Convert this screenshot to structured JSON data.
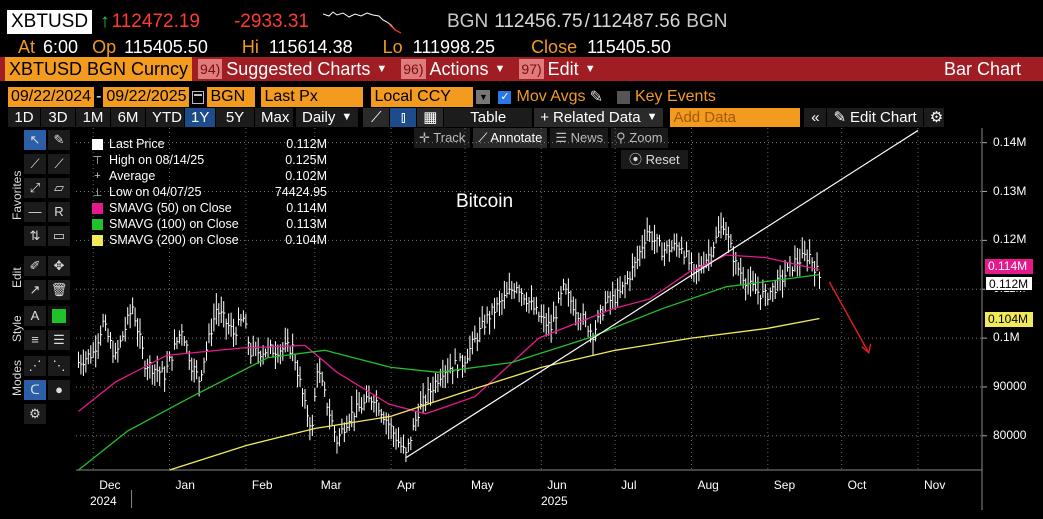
{
  "header": {
    "ticker": "XBTUSD",
    "arrow": "↑",
    "last": "112472.19",
    "change": "-2933.31",
    "source": "BGN",
    "bid": "112456.75",
    "sep": "/",
    "ask": "112487.56",
    "source2": "BGN"
  },
  "quote": {
    "at_label": "At",
    "at": "6:00",
    "op_label": "Op",
    "op": "115405.50",
    "hi_label": "Hi",
    "hi": "115614.38",
    "lo_label": "Lo",
    "lo": "111998.25",
    "close_label": "Close",
    "close": "115405.50"
  },
  "menubar": {
    "security": "XBTUSD BGN Curncy",
    "items": [
      {
        "num": "94)",
        "label": "Suggested Charts"
      },
      {
        "num": "96)",
        "label": "Actions"
      },
      {
        "num": "97)",
        "label": "Edit"
      }
    ],
    "title": "Bar Chart"
  },
  "settings": {
    "start_date": "09/22/2024",
    "dash": "-",
    "end_date": "09/22/2025",
    "source": "BGN",
    "field": "Last Px",
    "currency": "Local CCY",
    "mov_avgs": "Mov Avgs",
    "key_events": "Key Events"
  },
  "periods": [
    "1D",
    "3D",
    "1M",
    "6M",
    "YTD",
    "1Y",
    "5Y",
    "Max"
  ],
  "selected_period": "1Y",
  "toolbar": {
    "daily": "Daily",
    "table": "Table",
    "related_data": "Related Data",
    "add_data_placeholder": "Add Data",
    "edit_chart": "Edit Chart"
  },
  "tools": {
    "track": "Track",
    "annotate": "Annotate",
    "news": "News",
    "zoom": "Zoom",
    "reset": "Reset"
  },
  "left_panel_labels": [
    "Favorites",
    "Edit",
    "Style",
    "Modes"
  ],
  "legend": [
    {
      "label": "Last Price",
      "value": "0.112M",
      "color": "#ffffff",
      "marker": "square"
    },
    {
      "label": "High on 08/14/25",
      "value": "0.125M",
      "color": "#cccccc",
      "marker": "high"
    },
    {
      "label": "Average",
      "value": "0.102M",
      "color": "#cccccc",
      "marker": "avg"
    },
    {
      "label": "Low on 04/07/25",
      "value": "74424.95",
      "color": "#cccccc",
      "marker": "low"
    },
    {
      "label": "SMAVG (50)  on Close",
      "value": "0.114M",
      "color": "#e6198c",
      "marker": "square"
    },
    {
      "label": "SMAVG (100)  on Close",
      "value": "0.113M",
      "color": "#22c02a",
      "marker": "square"
    },
    {
      "label": "SMAVG (200)  on Close",
      "value": "0.104M",
      "color": "#f2ea5a",
      "marker": "square"
    }
  ],
  "annotation_text": "Bitcoin",
  "colors": {
    "accent_orange": "#f29b1f",
    "menu_red": "#a01d24",
    "sma50": "#e6198c",
    "sma100": "#22c02a",
    "sma200": "#f2ea5a",
    "arrow": "#e02020"
  },
  "chart_data": {
    "type": "bar",
    "title": "Bitcoin",
    "y_tick_labels": [
      "0.14M",
      "0.13M",
      "0.12M",
      "0.11M",
      "0.1M",
      "90000",
      "80000"
    ],
    "y_ticks": [
      140000,
      130000,
      120000,
      110000,
      100000,
      90000,
      80000
    ],
    "ylim": [
      73000,
      143000
    ],
    "x_tick_labels": [
      "Dec",
      "Jan",
      "Feb",
      "Mar",
      "Apr",
      "May",
      "Jun",
      "Jul",
      "Aug",
      "Sep",
      "Oct",
      "Nov"
    ],
    "x_year_labels": [
      "2024",
      "2025"
    ],
    "badges": [
      {
        "label": "0.114M",
        "value": 114000,
        "color": "#e6198c"
      },
      {
        "label": "0.112M",
        "value": 112000,
        "color": "#ffffff"
      },
      {
        "label": "0.104M",
        "value": 104000,
        "color": "#f2ea5a"
      }
    ],
    "price_path": [
      [
        "2024-11-25",
        95000
      ],
      [
        "2024-12-01",
        97000
      ],
      [
        "2024-12-05",
        103000
      ],
      [
        "2024-12-10",
        96000
      ],
      [
        "2024-12-17",
        106500
      ],
      [
        "2024-12-22",
        95000
      ],
      [
        "2024-12-30",
        92500
      ],
      [
        "2025-01-06",
        102000
      ],
      [
        "2025-01-10",
        94500
      ],
      [
        "2025-01-13",
        91500
      ],
      [
        "2025-01-20",
        106000
      ],
      [
        "2025-01-27",
        101000
      ],
      [
        "2025-01-31",
        104000
      ],
      [
        "2025-02-03",
        97000
      ],
      [
        "2025-02-10",
        97500
      ],
      [
        "2025-02-20",
        98000
      ],
      [
        "2025-02-25",
        86000
      ],
      [
        "2025-02-28",
        81500
      ],
      [
        "2025-03-02",
        94000
      ],
      [
        "2025-03-10",
        79000
      ],
      [
        "2025-03-15",
        84000
      ],
      [
        "2025-03-25",
        88000
      ],
      [
        "2025-03-31",
        82500
      ],
      [
        "2025-04-07",
        76000
      ],
      [
        "2025-04-12",
        85000
      ],
      [
        "2025-04-22",
        93500
      ],
      [
        "2025-04-30",
        95000
      ],
      [
        "2025-05-10",
        104000
      ],
      [
        "2025-05-22",
        111000
      ],
      [
        "2025-05-31",
        104500
      ],
      [
        "2025-06-05",
        102000
      ],
      [
        "2025-06-10",
        110000
      ],
      [
        "2025-06-17",
        104500
      ],
      [
        "2025-06-22",
        101000
      ],
      [
        "2025-06-27",
        107000
      ],
      [
        "2025-07-03",
        109000
      ],
      [
        "2025-07-10",
        116000
      ],
      [
        "2025-07-14",
        122000
      ],
      [
        "2025-07-20",
        118000
      ],
      [
        "2025-07-28",
        119000
      ],
      [
        "2025-08-02",
        113000
      ],
      [
        "2025-08-08",
        117000
      ],
      [
        "2025-08-14",
        123500
      ],
      [
        "2025-08-19",
        115000
      ],
      [
        "2025-08-25",
        110500
      ],
      [
        "2025-08-31",
        108500
      ],
      [
        "2025-09-05",
        111000
      ],
      [
        "2025-09-12",
        115500
      ],
      [
        "2025-09-18",
        117000
      ],
      [
        "2025-09-22",
        112500
      ]
    ],
    "series": [
      {
        "name": "SMAVG (50)  on Close",
        "points": [
          [
            "2024-11-25",
            85000
          ],
          [
            "2024-12-10",
            91000
          ],
          [
            "2024-12-31",
            96500
          ],
          [
            "2025-01-31",
            98000
          ],
          [
            "2025-02-25",
            98500
          ],
          [
            "2025-03-10",
            93000
          ],
          [
            "2025-03-31",
            86500
          ],
          [
            "2025-04-15",
            84500
          ],
          [
            "2025-05-05",
            88000
          ],
          [
            "2025-05-31",
            100000
          ],
          [
            "2025-06-30",
            106000
          ],
          [
            "2025-07-15",
            108000
          ],
          [
            "2025-07-31",
            113500
          ],
          [
            "2025-08-15",
            117000
          ],
          [
            "2025-08-31",
            116500
          ],
          [
            "2025-09-22",
            114000
          ]
        ]
      },
      {
        "name": "SMAVG (100)  on Close",
        "points": [
          [
            "2024-11-25",
            73000
          ],
          [
            "2024-12-15",
            81000
          ],
          [
            "2025-01-10",
            88000
          ],
          [
            "2025-02-10",
            96000
          ],
          [
            "2025-03-05",
            97500
          ],
          [
            "2025-04-01",
            94000
          ],
          [
            "2025-04-20",
            93000
          ],
          [
            "2025-05-20",
            95000
          ],
          [
            "2025-06-20",
            100000
          ],
          [
            "2025-07-20",
            106000
          ],
          [
            "2025-08-15",
            110500
          ],
          [
            "2025-09-22",
            113000
          ]
        ]
      },
      {
        "name": "SMAVG (200)  on Close",
        "points": [
          [
            "2025-01-01",
            73000
          ],
          [
            "2025-02-01",
            78000
          ],
          [
            "2025-03-01",
            81500
          ],
          [
            "2025-04-01",
            84000
          ],
          [
            "2025-05-01",
            89000
          ],
          [
            "2025-06-01",
            94000
          ],
          [
            "2025-07-01",
            97500
          ],
          [
            "2025-08-01",
            100000
          ],
          [
            "2025-09-01",
            102000
          ],
          [
            "2025-09-22",
            104000
          ]
        ]
      }
    ],
    "trendline": [
      [
        "2025-04-07",
        75500
      ],
      [
        "2025-11-01",
        142500
      ]
    ],
    "forecast_arrow": [
      [
        "2025-09-26",
        111500
      ],
      [
        "2025-10-12",
        97000
      ]
    ]
  }
}
